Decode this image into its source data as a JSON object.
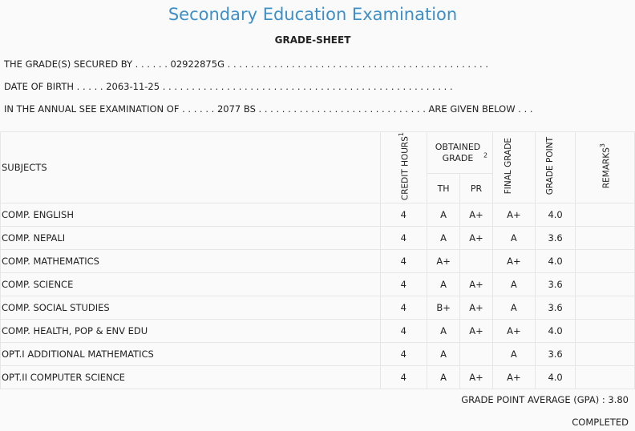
{
  "header": {
    "title": "Secondary Education Examination",
    "subtitle": "GRADE-SHEET"
  },
  "info": {
    "line1": "THE GRADE(S) SECURED BY . . . . . . 02922875G . . . . . . . . . . . . . . . . . . . . . . . . . . . . . . . . . . . . . . . . . . . . .",
    "line2": "DATE OF BIRTH . . . . . 2063-11-25 . . . . . . . . . . . . . . . . . . . . . . . . . . . . . . . . . . . . . . . . . . . . . . . . . .",
    "line3": "IN THE ANNUAL SEE EXAMINATION OF . . . . . . 2077 BS . . . . . . . . . . . . . . . . . . . . . . . . . . . . . ARE GIVEN BELOW . . ."
  },
  "table": {
    "headers": {
      "subjects": "SUBJECTS",
      "credit": "CREDIT HOURS",
      "credit_sup": "1",
      "obtained": "OBTAINED GRADE",
      "obtained_sup": "2",
      "th": "TH",
      "pr": "PR",
      "final": "FINAL GRADE",
      "gp": "GRADE POINT",
      "remarks": "REMARKS",
      "remarks_sup": "3"
    },
    "rows": [
      {
        "subject": "COMP. ENGLISH",
        "credit": "4",
        "th": "A",
        "pr": "A+",
        "final": "A+",
        "gp": "4.0",
        "remarks": ""
      },
      {
        "subject": "COMP. NEPALI",
        "credit": "4",
        "th": "A",
        "pr": "A+",
        "final": "A",
        "gp": "3.6",
        "remarks": ""
      },
      {
        "subject": "COMP. MATHEMATICS",
        "credit": "4",
        "th": "A+",
        "pr": "",
        "final": "A+",
        "gp": "4.0",
        "remarks": ""
      },
      {
        "subject": "COMP. SCIENCE",
        "credit": "4",
        "th": "A",
        "pr": "A+",
        "final": "A",
        "gp": "3.6",
        "remarks": ""
      },
      {
        "subject": "COMP. SOCIAL STUDIES",
        "credit": "4",
        "th": "B+",
        "pr": "A+",
        "final": "A",
        "gp": "3.6",
        "remarks": ""
      },
      {
        "subject": "COMP. HEALTH, POP & ENV EDU",
        "credit": "4",
        "th": "A",
        "pr": "A+",
        "final": "A+",
        "gp": "4.0",
        "remarks": ""
      },
      {
        "subject": "OPT.I ADDITIONAL MATHEMATICS",
        "credit": "4",
        "th": "A",
        "pr": "",
        "final": "A",
        "gp": "3.6",
        "remarks": ""
      },
      {
        "subject": "OPT.II COMPUTER SCIENCE",
        "credit": "4",
        "th": "A",
        "pr": "A+",
        "final": "A+",
        "gp": "4.0",
        "remarks": ""
      }
    ]
  },
  "footer": {
    "gpa": "GRADE POINT AVERAGE (GPA) : 3.80",
    "status": "COMPLETED"
  }
}
